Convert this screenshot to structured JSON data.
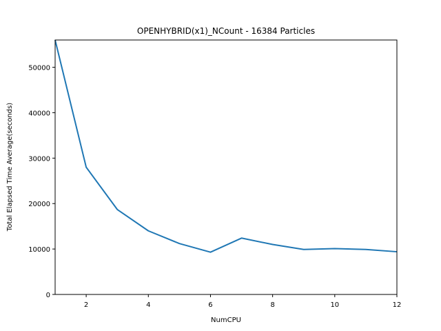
{
  "chart_data": {
    "type": "line",
    "title": "OPENHYBRID(x1)_NCount - 16384 Particles",
    "xlabel": "NumCPU",
    "ylabel": "Total Elapsed Time Average(seconds)",
    "xlim": [
      1,
      12
    ],
    "ylim": [
      0,
      56000
    ],
    "xticks": [
      2,
      4,
      6,
      8,
      10,
      12
    ],
    "yticks": [
      0,
      10000,
      20000,
      30000,
      40000,
      50000
    ],
    "grid": false,
    "series": [
      {
        "color": "#1f77b4",
        "x": [
          1,
          2,
          3,
          4,
          5,
          6,
          7,
          8,
          9,
          10,
          11,
          12
        ],
        "y": [
          56000,
          28000,
          18700,
          14000,
          11200,
          9300,
          12400,
          11000,
          9900,
          10100,
          9900,
          9400
        ]
      }
    ]
  }
}
